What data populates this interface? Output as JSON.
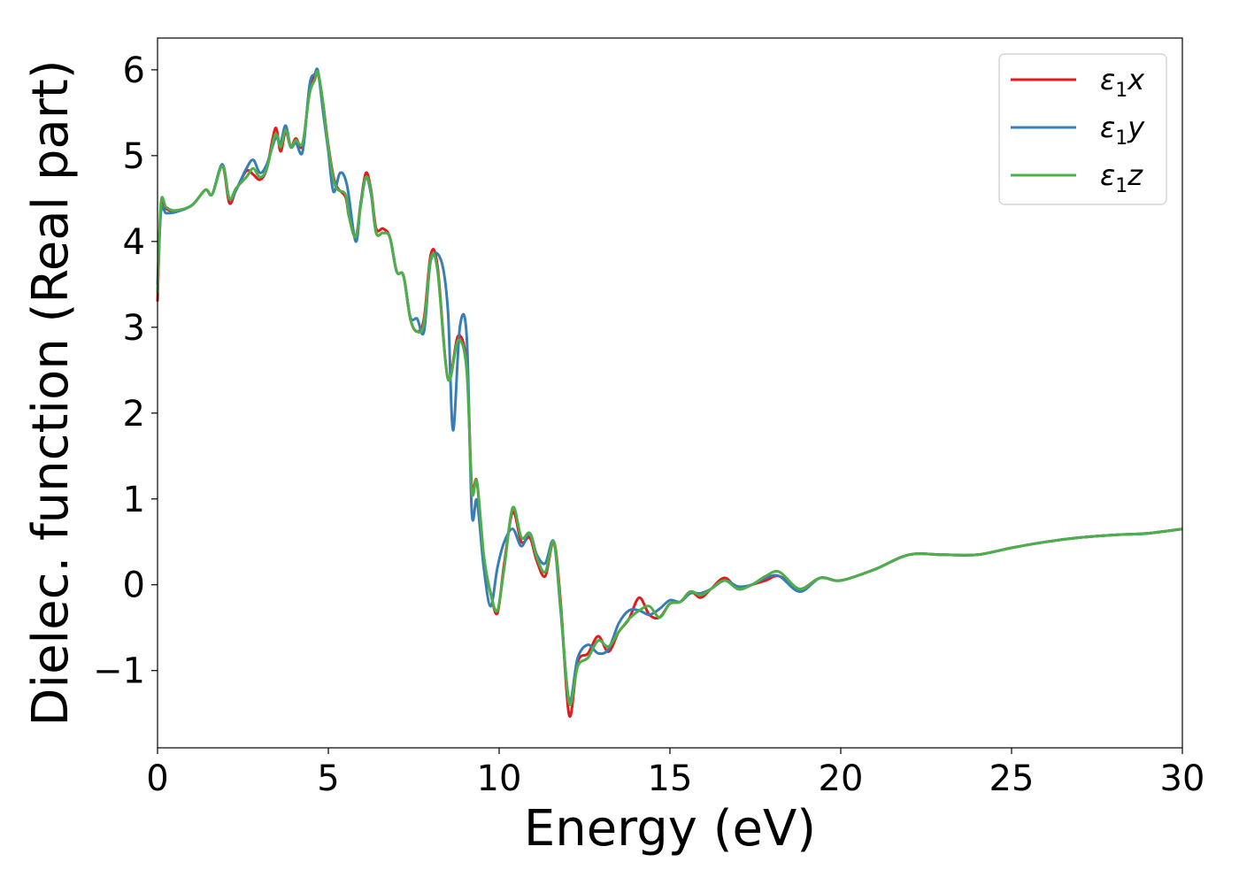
{
  "chart_data": {
    "type": "line",
    "xlabel": "Energy (eV)",
    "ylabel": "Dielec. function (Real part)",
    "xlim": [
      0,
      30
    ],
    "ylim": [
      -1.9,
      6.37
    ],
    "xticks": [
      0,
      5,
      10,
      15,
      20,
      25,
      30
    ],
    "yticks": [
      -1,
      0,
      1,
      2,
      3,
      4,
      5,
      6
    ],
    "xtick_labels": [
      "0",
      "5",
      "10",
      "15",
      "20",
      "25",
      "30"
    ],
    "ytick_labels": [
      "−1",
      "0",
      "1",
      "2",
      "3",
      "4",
      "5",
      "6"
    ],
    "grid": false,
    "legend": "top-right",
    "series": [
      {
        "name": "ε1x",
        "name_base": "ε",
        "name_sub": "1",
        "name_var": "x",
        "color": "#e41a1c",
        "x": [
          0.0,
          0.1,
          0.25,
          0.5,
          1.0,
          1.4,
          1.6,
          1.9,
          2.1,
          2.3,
          2.6,
          2.8,
          3.0,
          3.2,
          3.45,
          3.6,
          3.75,
          3.9,
          4.05,
          4.25,
          4.45,
          4.6,
          4.7,
          4.85,
          5.0,
          5.2,
          5.5,
          5.6,
          5.8,
          5.95,
          6.1,
          6.25,
          6.4,
          6.6,
          6.8,
          7.0,
          7.2,
          7.4,
          7.6,
          7.8,
          8.0,
          8.2,
          8.5,
          8.8,
          9.05,
          9.2,
          9.35,
          9.55,
          9.75,
          9.95,
          10.15,
          10.4,
          10.65,
          10.9,
          11.1,
          11.35,
          11.6,
          11.8,
          12.05,
          12.3,
          12.6,
          12.9,
          13.2,
          13.5,
          13.8,
          14.1,
          14.4,
          14.7,
          15.0,
          15.3,
          15.6,
          15.9,
          16.2,
          16.6,
          17.0,
          17.4,
          17.8,
          18.2,
          18.8,
          19.4,
          20.0,
          21.0,
          22.0,
          23.0,
          24.0,
          25.0,
          26.0,
          27.0,
          28.0,
          29.0,
          30.0
        ],
        "y": [
          3.3,
          4.4,
          4.38,
          4.35,
          4.42,
          4.6,
          4.55,
          4.88,
          4.45,
          4.6,
          4.82,
          4.78,
          4.72,
          4.85,
          5.32,
          5.05,
          5.28,
          5.1,
          5.2,
          5.12,
          5.78,
          5.92,
          5.95,
          5.6,
          5.12,
          4.68,
          4.52,
          4.3,
          4.05,
          4.45,
          4.8,
          4.6,
          4.15,
          4.15,
          4.05,
          3.65,
          3.6,
          3.1,
          2.95,
          3.1,
          3.85,
          3.7,
          2.4,
          2.9,
          2.55,
          1.15,
          1.2,
          0.3,
          -0.1,
          -0.33,
          0.25,
          0.85,
          0.5,
          0.55,
          0.28,
          0.1,
          0.5,
          -0.2,
          -1.52,
          -0.9,
          -0.8,
          -0.6,
          -0.78,
          -0.55,
          -0.4,
          -0.15,
          -0.35,
          -0.38,
          -0.22,
          -0.2,
          -0.08,
          -0.15,
          -0.05,
          0.08,
          -0.05,
          0.0,
          0.05,
          0.1,
          -0.05,
          0.08,
          0.05,
          0.18,
          0.35,
          0.35,
          0.35,
          0.43,
          0.5,
          0.55,
          0.58,
          0.6,
          0.65
        ]
      },
      {
        "name": "ε1y",
        "name_base": "ε",
        "name_sub": "1",
        "name_var": "y",
        "color": "#377eb8",
        "x": [
          0.0,
          0.1,
          0.25,
          0.5,
          1.0,
          1.4,
          1.6,
          1.9,
          2.1,
          2.3,
          2.6,
          2.8,
          3.0,
          3.2,
          3.45,
          3.6,
          3.75,
          3.9,
          4.05,
          4.25,
          4.45,
          4.6,
          4.7,
          4.85,
          5.0,
          5.15,
          5.35,
          5.55,
          5.8,
          5.95,
          6.1,
          6.25,
          6.4,
          6.6,
          6.8,
          7.0,
          7.2,
          7.4,
          7.6,
          7.8,
          8.0,
          8.3,
          8.5,
          8.65,
          8.85,
          9.05,
          9.2,
          9.35,
          9.55,
          9.75,
          9.95,
          10.15,
          10.4,
          10.65,
          10.9,
          11.1,
          11.35,
          11.6,
          11.8,
          12.05,
          12.3,
          12.6,
          12.9,
          13.2,
          13.5,
          13.8,
          14.1,
          14.4,
          14.7,
          15.0,
          15.3,
          15.6,
          15.9,
          16.2,
          16.6,
          17.0,
          17.4,
          17.8,
          18.2,
          18.8,
          19.4,
          20.0,
          21.0,
          22.0,
          23.0,
          24.0,
          25.0,
          26.0,
          27.0,
          28.0,
          29.0,
          30.0
        ],
        "y": [
          3.5,
          4.35,
          4.33,
          4.34,
          4.42,
          4.6,
          4.55,
          4.9,
          4.5,
          4.6,
          4.85,
          4.95,
          4.8,
          4.9,
          5.2,
          5.15,
          5.35,
          5.1,
          5.15,
          5.05,
          5.82,
          5.95,
          5.98,
          5.5,
          5.05,
          4.58,
          4.8,
          4.65,
          4.0,
          4.45,
          4.75,
          4.55,
          4.1,
          4.1,
          4.05,
          3.65,
          3.6,
          3.12,
          3.1,
          2.95,
          3.78,
          3.78,
          3.2,
          1.8,
          3.0,
          2.9,
          0.85,
          0.98,
          0.2,
          -0.25,
          0.2,
          0.5,
          0.65,
          0.45,
          0.6,
          0.35,
          0.25,
          0.5,
          -0.3,
          -1.35,
          -0.85,
          -0.7,
          -0.8,
          -0.75,
          -0.45,
          -0.3,
          -0.3,
          -0.35,
          -0.28,
          -0.18,
          -0.2,
          -0.1,
          -0.1,
          -0.05,
          0.05,
          -0.02,
          0.0,
          0.08,
          0.1,
          -0.08,
          0.08,
          0.05,
          0.18,
          0.35,
          0.35,
          0.35,
          0.43,
          0.5,
          0.55,
          0.58,
          0.6,
          0.65
        ]
      },
      {
        "name": "ε1z",
        "name_base": "ε",
        "name_sub": "1",
        "name_var": "z",
        "color": "#4daf4a",
        "x": [
          0.0,
          0.1,
          0.25,
          0.5,
          1.0,
          1.4,
          1.6,
          1.9,
          2.1,
          2.3,
          2.6,
          2.8,
          3.0,
          3.2,
          3.45,
          3.6,
          3.75,
          3.9,
          4.05,
          4.25,
          4.45,
          4.6,
          4.7,
          4.85,
          5.0,
          5.2,
          5.5,
          5.6,
          5.8,
          5.95,
          6.1,
          6.25,
          6.4,
          6.6,
          6.8,
          7.0,
          7.2,
          7.4,
          7.6,
          7.8,
          8.0,
          8.2,
          8.5,
          8.8,
          9.05,
          9.2,
          9.35,
          9.55,
          9.75,
          9.95,
          10.15,
          10.4,
          10.65,
          10.9,
          11.1,
          11.35,
          11.6,
          11.8,
          12.05,
          12.3,
          12.6,
          12.9,
          13.2,
          13.5,
          13.8,
          14.1,
          14.4,
          14.7,
          15.0,
          15.3,
          15.6,
          15.9,
          16.2,
          16.6,
          17.0,
          17.4,
          17.8,
          18.2,
          18.8,
          19.4,
          20.0,
          21.0,
          22.0,
          23.0,
          24.0,
          25.0,
          26.0,
          27.0,
          28.0,
          29.0,
          30.0
        ],
        "y": [
          3.4,
          4.45,
          4.4,
          4.36,
          4.42,
          4.6,
          4.55,
          4.88,
          4.5,
          4.62,
          4.75,
          4.85,
          4.75,
          4.85,
          5.25,
          5.1,
          5.3,
          5.1,
          5.18,
          5.15,
          5.72,
          5.88,
          5.97,
          5.6,
          5.1,
          4.65,
          4.55,
          4.3,
          4.05,
          4.42,
          4.75,
          4.58,
          4.1,
          4.1,
          4.05,
          3.65,
          3.6,
          3.1,
          2.95,
          3.05,
          3.8,
          3.65,
          2.4,
          2.85,
          2.5,
          1.1,
          1.2,
          0.35,
          -0.1,
          -0.3,
          0.2,
          0.9,
          0.55,
          0.6,
          0.32,
          0.15,
          0.5,
          -0.25,
          -1.38,
          -0.95,
          -0.85,
          -0.65,
          -0.72,
          -0.55,
          -0.4,
          -0.3,
          -0.25,
          -0.38,
          -0.22,
          -0.2,
          -0.08,
          -0.12,
          -0.05,
          0.05,
          -0.05,
          0.0,
          0.1,
          0.15,
          -0.05,
          0.08,
          0.05,
          0.18,
          0.35,
          0.35,
          0.35,
          0.43,
          0.5,
          0.55,
          0.58,
          0.6,
          0.65
        ]
      }
    ]
  }
}
